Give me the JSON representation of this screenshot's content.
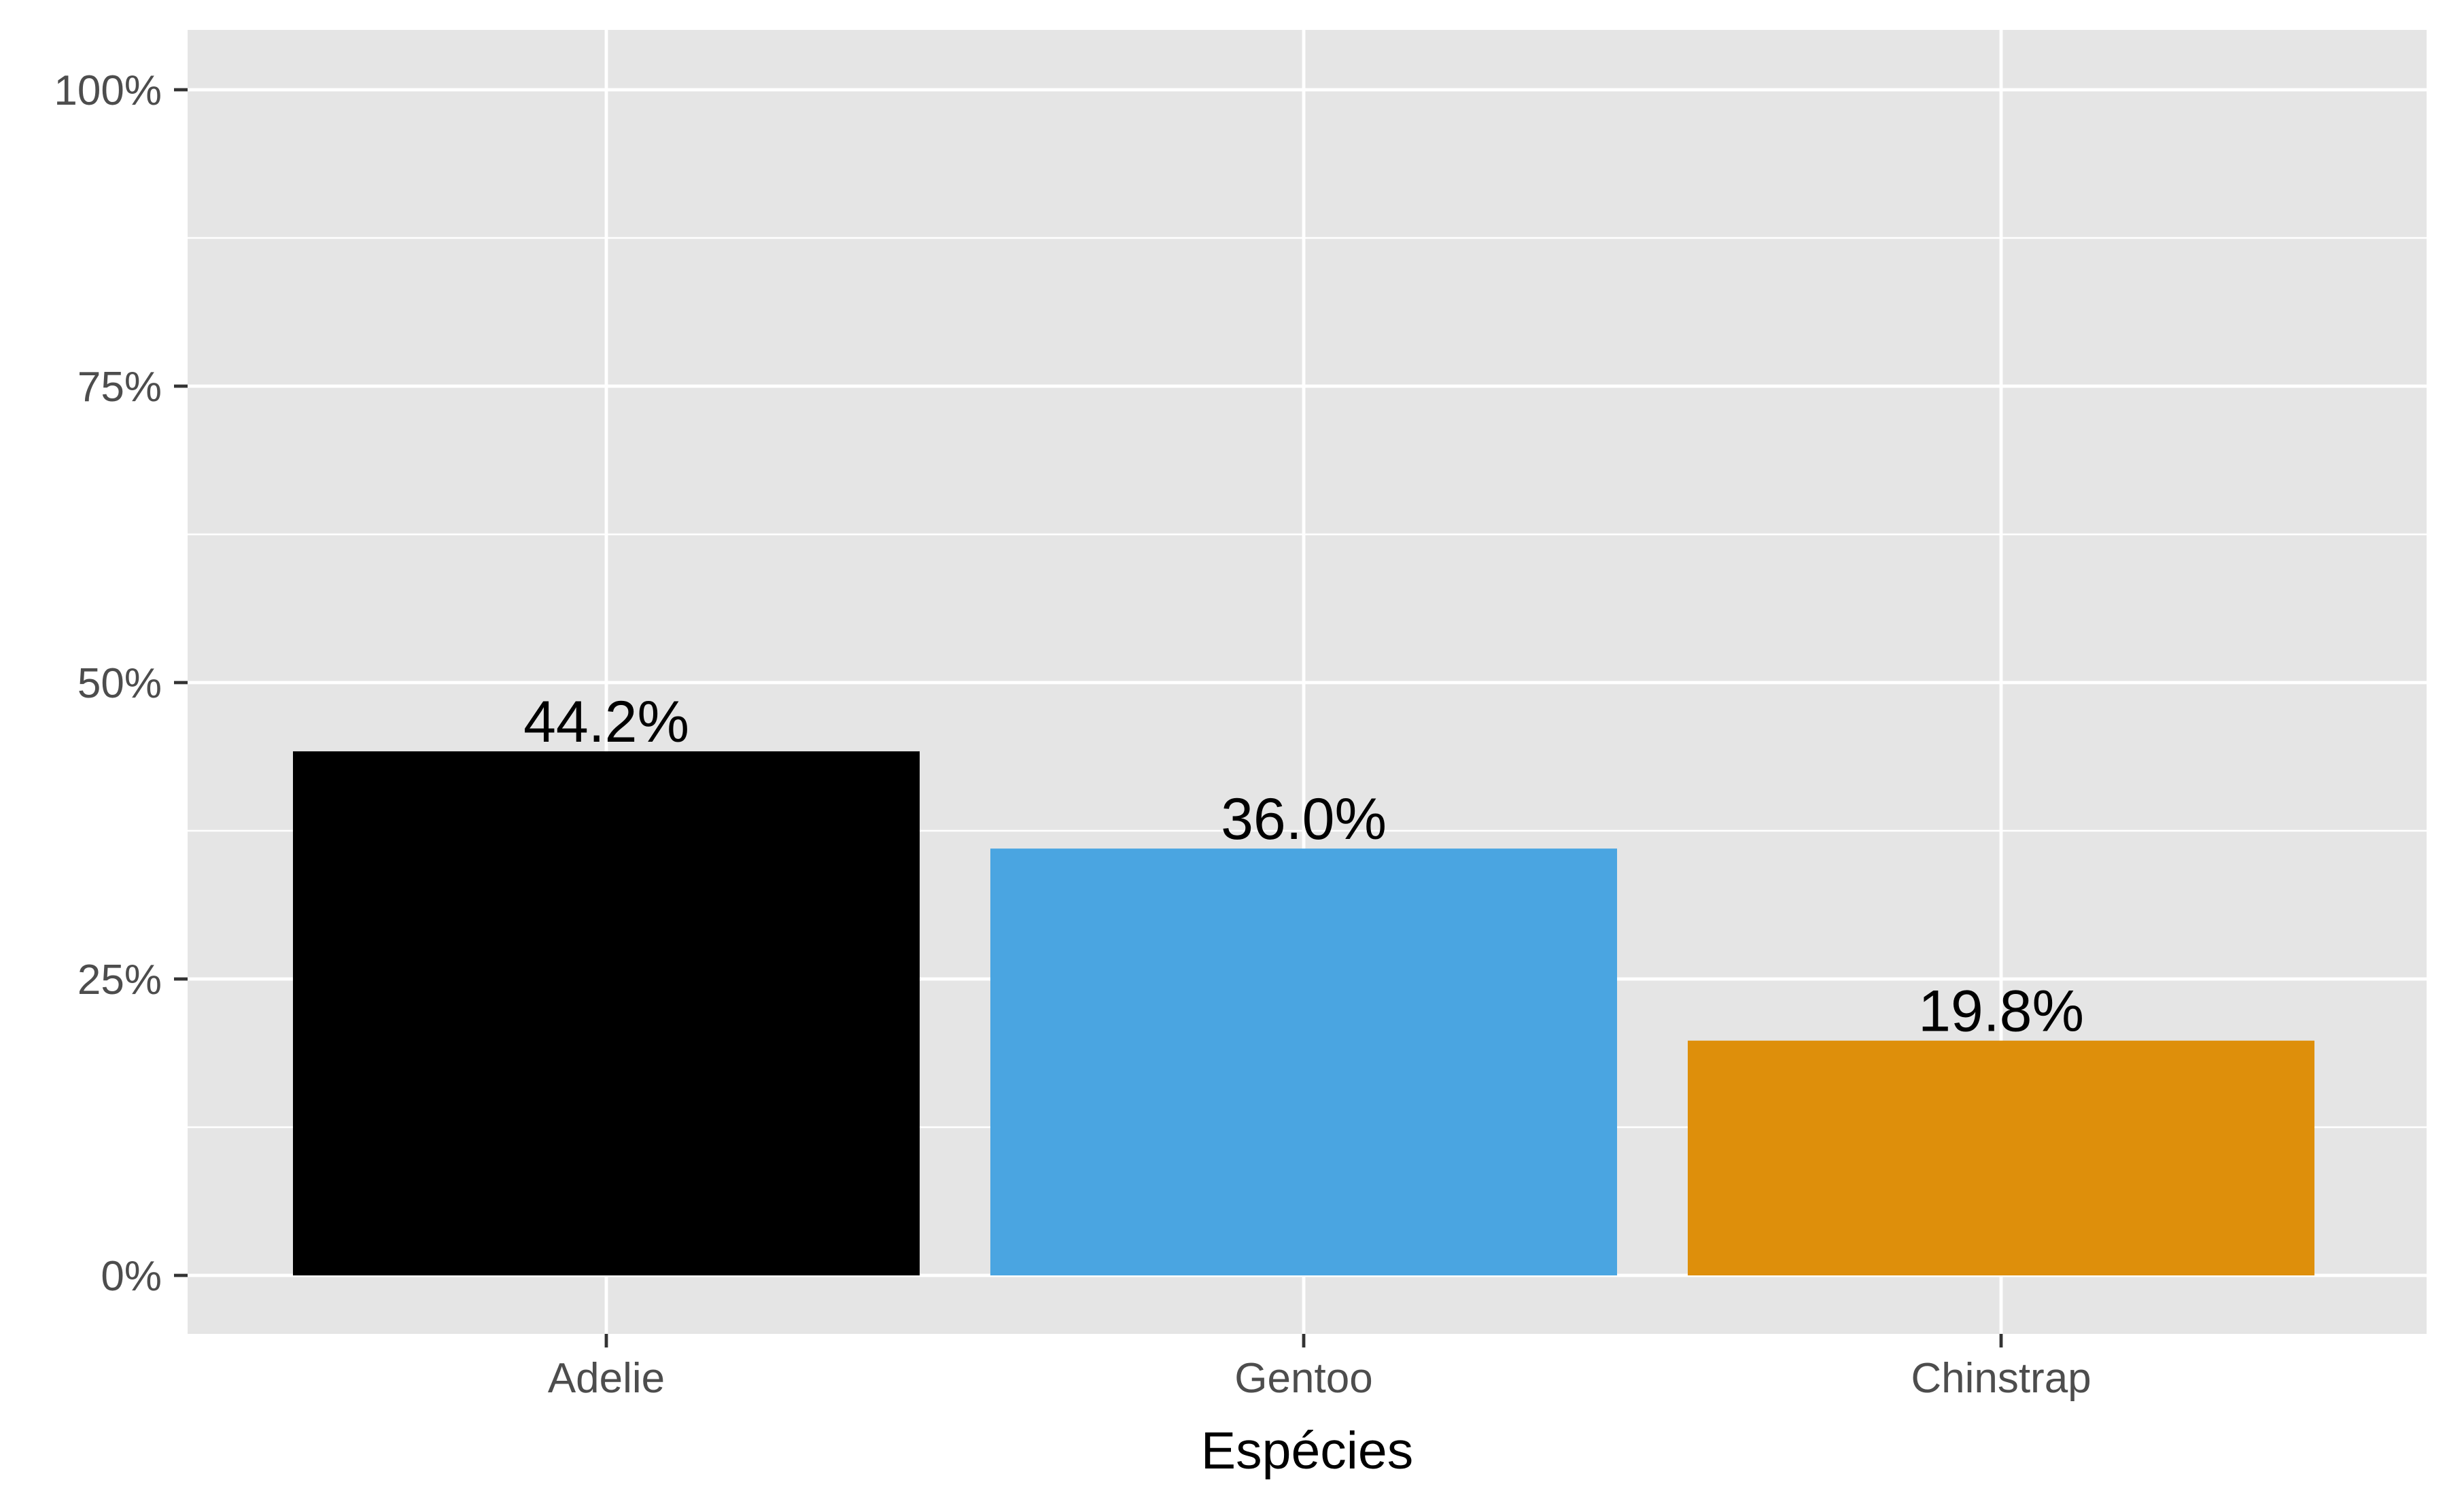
{
  "chart_data": {
    "type": "bar",
    "title": "",
    "xlabel": "Espécies",
    "ylabel": "",
    "categories": [
      "Adelie",
      "Gentoo",
      "Chinstrap"
    ],
    "values": [
      44.2,
      36.0,
      19.8
    ],
    "value_labels": [
      "44.2%",
      "36.0%",
      "19.8%"
    ],
    "bar_colors": [
      "#000000",
      "#4aa5e1",
      "#de8f0b"
    ],
    "ylim": [
      0,
      100
    ],
    "yticks": [
      0,
      25,
      50,
      75,
      100
    ],
    "ytick_labels": [
      "0%",
      "25%",
      "50%",
      "75%",
      "100%"
    ],
    "grid": true,
    "legend": "none",
    "colors": {
      "panel_background": "#e5e5e5",
      "grid_line": "#ffffff",
      "tick_text": "#4d4d4d",
      "axis_title": "#000000",
      "tick_mark": "#333333"
    }
  }
}
